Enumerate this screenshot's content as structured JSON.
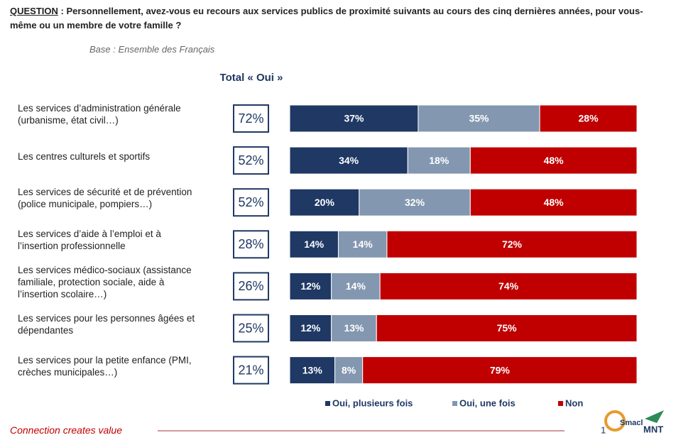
{
  "question_label": "QUESTION",
  "question": " : Personnellement, avez-vous eu recours aux services publics de proximité suivants au cours des cinq dernières années, pour vous-même ou un membre de votre famille ?",
  "base": "Base : Ensemble des Français",
  "total_header": "Total « Oui »",
  "footer": "Connection creates value",
  "page_number": "1",
  "logos": [
    "Smacl",
    "MNT"
  ],
  "chart_data": {
    "type": "stacked-bar",
    "orientation": "horizontal",
    "categories": [
      "Les services d’administration générale\n(urbanisme, état civil…)",
      "Les centres culturels et sportifs",
      "Les services de sécurité et de prévention\n(police municipale, pompiers…)",
      "Les services d’aide à l’emploi et à\nl’insertion professionnelle",
      "Les services médico-sociaux (assistance\nfamiliale, protection sociale, aide à\nl’insertion scolaire…)",
      "Les services pour les personnes âgées et\ndépendantes",
      "Les services pour la petite enfance (PMI,\ncrèches municipales…)"
    ],
    "totals": {
      "values": [
        72,
        52,
        52,
        28,
        26,
        25,
        21
      ],
      "value_labels": [
        "72%",
        "52%",
        "52%",
        "28%",
        "26%",
        "25%",
        "21%"
      ]
    },
    "xlim": [
      0,
      100
    ],
    "series": [
      {
        "name": "Oui, plusieurs fois",
        "color": "#1f3864",
        "values": [
          37,
          34,
          20,
          14,
          12,
          12,
          13
        ],
        "value_labels": [
          "37%",
          "34%",
          "20%",
          "14%",
          "12%",
          "12%",
          "13%"
        ]
      },
      {
        "name": "Oui, une fois",
        "color": "#8497b0",
        "values": [
          35,
          18,
          32,
          14,
          14,
          13,
          8
        ],
        "value_labels": [
          "35%",
          "18%",
          "32%",
          "14%",
          "14%",
          "13%",
          "8%"
        ]
      },
      {
        "name": "Non",
        "color": "#c00000",
        "values": [
          28,
          48,
          48,
          72,
          74,
          75,
          79
        ],
        "value_labels": [
          "28%",
          "48%",
          "48%",
          "72%",
          "74%",
          "75%",
          "79%"
        ]
      }
    ]
  }
}
